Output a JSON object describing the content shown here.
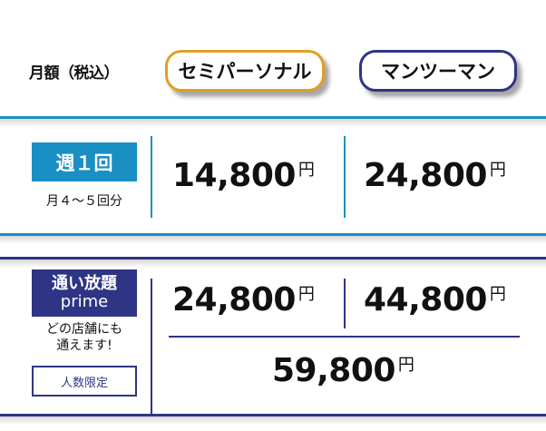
{
  "header": {
    "label": "月額（税込）",
    "plans": [
      {
        "label": "セミパーソナル",
        "color": "#e0a020"
      },
      {
        "label": "マンツーマン",
        "color": "#2e3585"
      }
    ]
  },
  "rows": [
    {
      "tag": "週１回",
      "note": "月４～５回分",
      "color": "#1a8fc4",
      "prices": [
        {
          "amount": "14,800",
          "unit": "円"
        },
        {
          "amount": "24,800",
          "unit": "円"
        }
      ]
    },
    {
      "tag_line1": "通い放題",
      "tag_line2": "prime",
      "note_line1": "どの店舗にも",
      "note_line2": "通えます!",
      "badge": "人数限定",
      "color": "#2e3585",
      "prices": [
        {
          "amount": "24,800",
          "unit": "円"
        },
        {
          "amount": "44,800",
          "unit": "円"
        }
      ],
      "combined": {
        "amount": "59,800",
        "unit": "円"
      }
    }
  ]
}
